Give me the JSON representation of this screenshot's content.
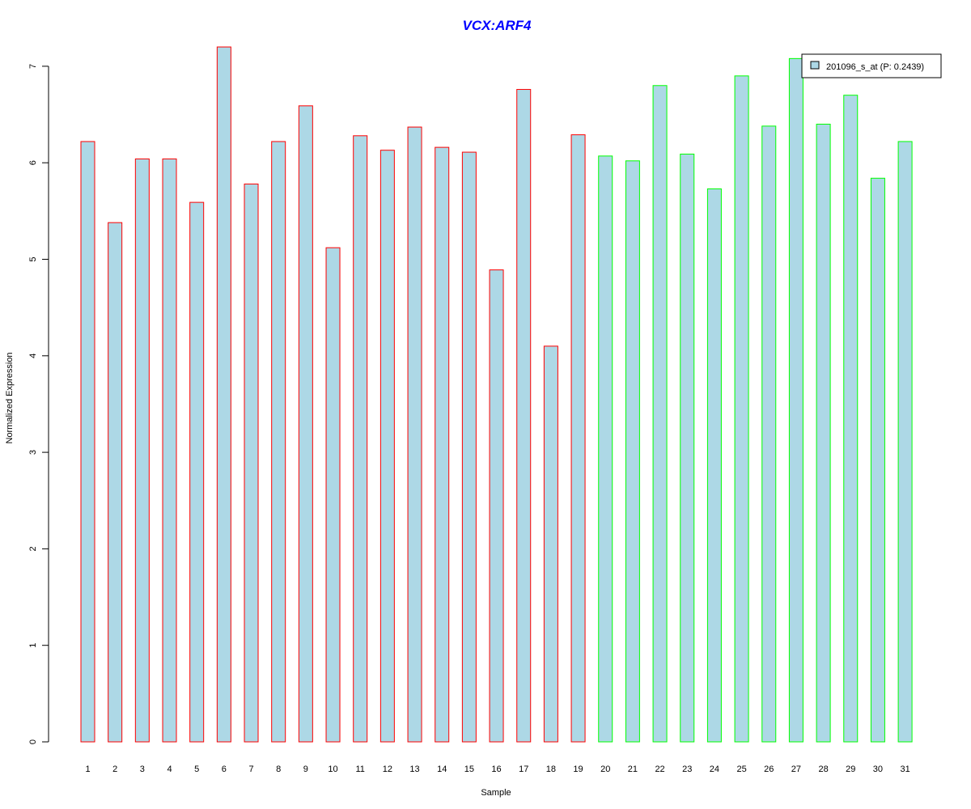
{
  "chart_data": {
    "type": "bar",
    "title": "VCX:ARF4",
    "xlabel": "Sample",
    "ylabel": "Normalized Expression",
    "ylim": [
      0,
      7.2
    ],
    "yticks": [
      "0",
      "1",
      "2",
      "3",
      "4",
      "5",
      "6",
      "7"
    ],
    "categories": [
      "1",
      "2",
      "3",
      "4",
      "5",
      "6",
      "7",
      "8",
      "9",
      "10",
      "11",
      "12",
      "13",
      "14",
      "15",
      "16",
      "17",
      "18",
      "19",
      "20",
      "21",
      "22",
      "23",
      "24",
      "25",
      "26",
      "27",
      "28",
      "29",
      "30",
      "31"
    ],
    "series": [
      {
        "name": "201096_s_at (P: 0.2439)",
        "values": [
          6.22,
          5.38,
          6.04,
          6.04,
          5.59,
          7.2,
          5.78,
          6.22,
          6.59,
          5.12,
          6.28,
          6.13,
          6.37,
          6.16,
          6.11,
          4.89,
          6.76,
          4.1,
          6.29,
          6.07,
          6.02,
          6.8,
          6.09,
          5.73,
          6.9,
          6.38,
          7.08,
          6.4,
          6.7,
          5.84,
          6.22
        ]
      }
    ],
    "groups": [
      {
        "from": 1,
        "to": 19,
        "border_color": "#ff0000"
      },
      {
        "from": 20,
        "to": 31,
        "border_color": "#00ff00"
      }
    ],
    "legend_position": "top-right",
    "grid": false
  },
  "colors": {
    "bar_fill": "#add8e6",
    "title": "#0000ff",
    "axis": "#000000"
  }
}
